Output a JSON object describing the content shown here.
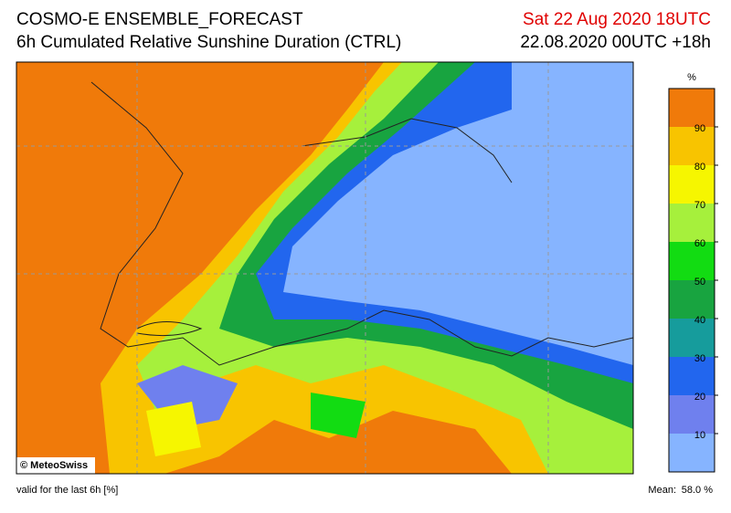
{
  "header": {
    "title": "COSMO-E ENSEMBLE_FORECAST",
    "subtitle": "6h Cumulated Relative Sunshine Duration (CTRL)",
    "valid_time": "Sat 22 Aug 2020 18UTC",
    "run": "22.08.2020 00UTC +18h"
  },
  "colorbar": {
    "unit": "%",
    "levels": [
      10,
      20,
      30,
      40,
      50,
      60,
      70,
      80,
      90
    ],
    "colors": [
      "#86b4ff",
      "#6f80ee",
      "#2266ee",
      "#169c9c",
      "#18a440",
      "#12dc12",
      "#a6f03c",
      "#f6f600",
      "#f8c400",
      "#f07a0a"
    ]
  },
  "map": {
    "credit": "© MeteoSwiss"
  },
  "footer": {
    "validity": "valid for the last 6h [%]",
    "mean_label": "Mean:",
    "mean_value": "58.0 %"
  }
}
